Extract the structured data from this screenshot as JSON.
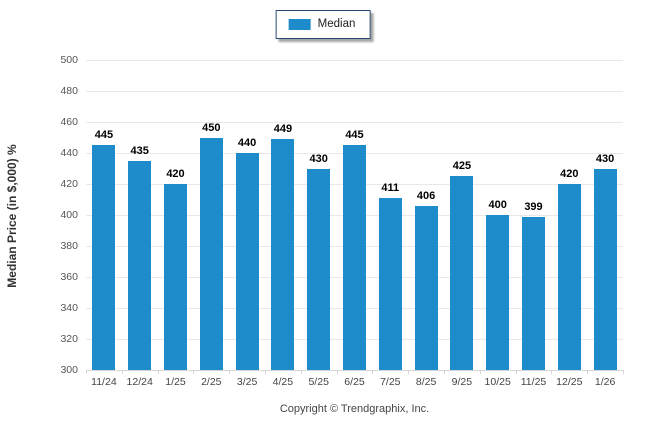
{
  "legend": {
    "label": "Median"
  },
  "footer": {
    "copyright": "Copyright © Trendgraphix, Inc."
  },
  "colors": {
    "bar": "#1e8bcb",
    "grid": "#e8e8e8",
    "axis": "#d6d6d6",
    "legend_border": "#2b4a73"
  },
  "chart_data": {
    "type": "bar",
    "title": "",
    "xlabel": "",
    "ylabel": "Median Price (in $,000) %",
    "categories": [
      "11/24",
      "12/24",
      "1/25",
      "2/25",
      "3/25",
      "4/25",
      "5/25",
      "6/25",
      "7/25",
      "8/25",
      "9/25",
      "10/25",
      "11/25",
      "12/25",
      "1/26"
    ],
    "values": [
      445,
      435,
      420,
      450,
      440,
      449,
      430,
      445,
      411,
      406,
      425,
      400,
      399,
      420,
      430
    ],
    "series_name": "Median",
    "ylim": [
      300,
      500
    ],
    "ytick_step": 20,
    "grid": true,
    "legend_position": "top-center",
    "value_labels": true
  }
}
